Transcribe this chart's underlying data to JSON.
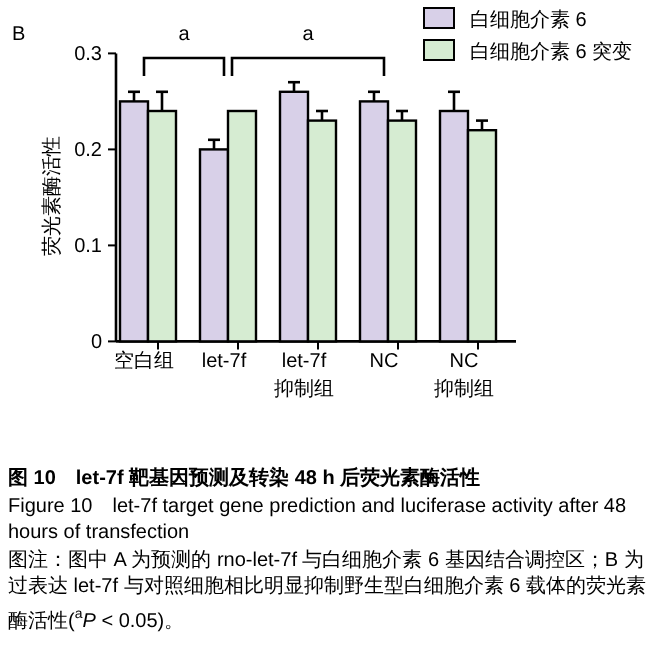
{
  "chart_data": {
    "type": "bar",
    "title": "图 10　let-7f 靶基因预测及转染 48 h 后荧光素酶活性",
    "subtitle": "Figure 10　let-7f target gene prediction and luciferase activity after 48 hours of transfection",
    "ylabel": "荧光素酶活性",
    "categories": [
      "空白组",
      "let-7f",
      "let-7f\n抑制组",
      "NC",
      "NC\n抑制组"
    ],
    "series": [
      {
        "name": "白细胞介素 6",
        "color": "#d8d0e8",
        "values": [
          0.25,
          0.2,
          0.26,
          0.25,
          0.24
        ],
        "errors": [
          [
            0.25,
            0.26
          ],
          [
            0.2,
            0.21
          ],
          [
            0.26,
            0.27
          ],
          [
            0.25,
            0.26
          ],
          [
            0.24,
            0.26
          ]
        ]
      },
      {
        "name": "白细胞介素 6 突变",
        "color": "#d6ecd2",
        "values": [
          0.24,
          0.24,
          0.23,
          0.23,
          0.22
        ],
        "errors": [
          [
            0.24,
            0.26
          ],
          null,
          [
            0.23,
            0.24
          ],
          [
            0.23,
            0.24
          ],
          [
            0.22,
            0.23
          ]
        ]
      }
    ],
    "ylim": [
      0,
      0.3
    ],
    "yticks": [
      0,
      0.1,
      0.2,
      0.3
    ],
    "legend": "top right",
    "grid": false,
    "annotations": [
      "B",
      "a",
      "a",
      "图注：图中 A 为预测的 rno-let-7f 与白细胞介素 6 基因结合调控区；B 为过表达 let-7f 与对照细胞相比明显抑制野生型白细胞介素 6 载体的荧光素酶活性($^{a}$*P* < 0.05)。"
    ]
  }
}
